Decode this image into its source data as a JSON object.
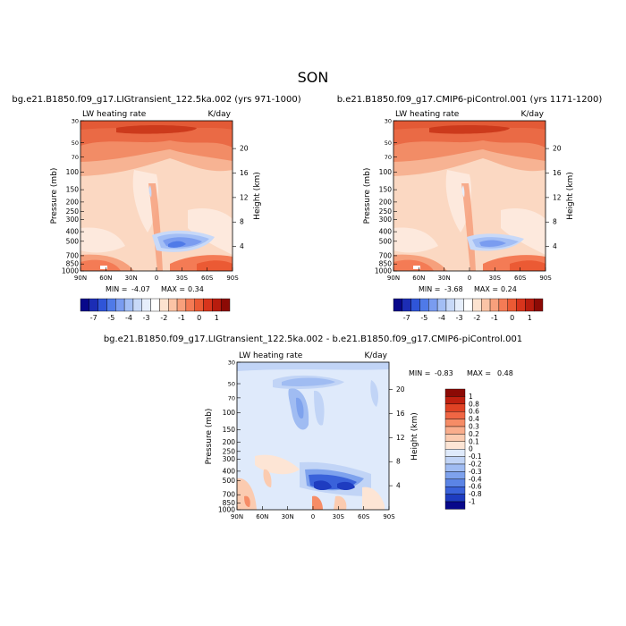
{
  "season": "SON",
  "panels": [
    {
      "title": "bg.e21.B1850.f09_g17.LIGtransient_122.5ka.002 (yrs 971-1000)",
      "var_label": "LW heating rate",
      "units": "K/day",
      "stats": {
        "min_label": "MIN =",
        "min": "-4.07",
        "max_label": "MAX =",
        "max": "0.34"
      }
    },
    {
      "title": "b.e21.B1850.f09_g17.CMIP6-piControl.001 (yrs 1171-1200)",
      "var_label": "LW heating rate",
      "units": "K/day",
      "stats": {
        "min_label": "MIN =",
        "min": "-3.68",
        "max_label": "MAX =",
        "max": "0.24"
      }
    },
    {
      "title": "bg.e21.B1850.f09_g17.LIGtransient_122.5ka.002 - b.e21.B1850.f09_g17.CMIP6-piControl.001",
      "var_label": "LW heating rate",
      "units": "K/day",
      "stats": {
        "min_label": "MIN =",
        "min": "-0.83",
        "max_label": "MAX =",
        "max": "0.48"
      }
    }
  ],
  "axes": {
    "ylabel": "Pressure (mb)",
    "ylabel_right": "Height (km)",
    "pressure_ticks": [
      "30",
      "50",
      "70",
      "100",
      "150",
      "200",
      "250",
      "300",
      "400",
      "500",
      "700",
      "850",
      "1000"
    ],
    "height_ticks": [
      "20",
      "16",
      "12",
      "8",
      "4"
    ],
    "lat_ticks": [
      "90N",
      "60N",
      "30N",
      "0",
      "30S",
      "60S",
      "90S"
    ]
  },
  "colorbar_main": {
    "labels": [
      "-7",
      "-5",
      "-4",
      "-3",
      "-2",
      "-1",
      "0",
      "1"
    ],
    "colors": [
      "#08088a",
      "#1c2db5",
      "#2f55d8",
      "#4f7ae8",
      "#7a9cf0",
      "#a3bef5",
      "#c8d9f8",
      "#e6eefb",
      "#ffffff",
      "#fde3d0",
      "#fbc4a6",
      "#f8a07c",
      "#f47b55",
      "#eb5a34",
      "#d8341c",
      "#b81c0e",
      "#8c0a05"
    ]
  },
  "colorbar_diff": {
    "labels": [
      "1",
      "0.8",
      "0.6",
      "0.4",
      "0.3",
      "0.2",
      "0.1",
      "0",
      "-0.1",
      "-0.2",
      "-0.3",
      "-0.4",
      "-0.6",
      "-0.8",
      "-1"
    ],
    "colors": [
      "#8c0a05",
      "#c02010",
      "#e04224",
      "#f06644",
      "#f68c66",
      "#f9ad8c",
      "#fbcbb0",
      "#fde5d5",
      "#dfeafb",
      "#c1d4f6",
      "#a0bcf2",
      "#7ea2ed",
      "#5b84e6",
      "#3a62da",
      "#1e3cc0",
      "#08088a"
    ]
  },
  "chart_data": [
    {
      "type": "heatmap",
      "title": "bg.e21.B1850.f09_g17.LIGtransient_122.5ka.002 (yrs 971-1000)",
      "x": [
        "90N",
        "60N",
        "30N",
        "0",
        "30S",
        "60S",
        "90S"
      ],
      "xlim": [
        90,
        -90
      ],
      "y_unit": "mb",
      "ylim": [
        1000,
        30
      ],
      "y_scale": "log",
      "min": -4.07,
      "max": 0.34,
      "levels": [
        -7,
        -6,
        -5,
        -4.5,
        -4,
        -3.5,
        -3,
        -2.5,
        -2,
        -1.5,
        -1,
        -0.5,
        0,
        0.5,
        1
      ]
    },
    {
      "type": "heatmap",
      "title": "b.e21.B1850.f09_g17.CMIP6-piControl.001 (yrs 1171-1200)",
      "x": [
        "90N",
        "60N",
        "30N",
        "0",
        "30S",
        "60S",
        "90S"
      ],
      "xlim": [
        90,
        -90
      ],
      "y_unit": "mb",
      "ylim": [
        1000,
        30
      ],
      "y_scale": "log",
      "min": -3.68,
      "max": 0.24
    },
    {
      "type": "heatmap",
      "title": "bg.e21.B1850.f09_g17.LIGtransient_122.5ka.002 - b.e21.B1850.f09_g17.CMIP6-piControl.001",
      "x": [
        "90N",
        "60N",
        "30N",
        "0",
        "30S",
        "60S",
        "90S"
      ],
      "xlim": [
        90,
        -90
      ],
      "y_unit": "mb",
      "ylim": [
        1000,
        30
      ],
      "y_scale": "log",
      "min": -0.83,
      "max": 0.48,
      "levels": [
        -1,
        -0.8,
        -0.6,
        -0.4,
        -0.3,
        -0.2,
        -0.1,
        0,
        0.1,
        0.2,
        0.3,
        0.4,
        0.6,
        0.8,
        1
      ]
    }
  ]
}
